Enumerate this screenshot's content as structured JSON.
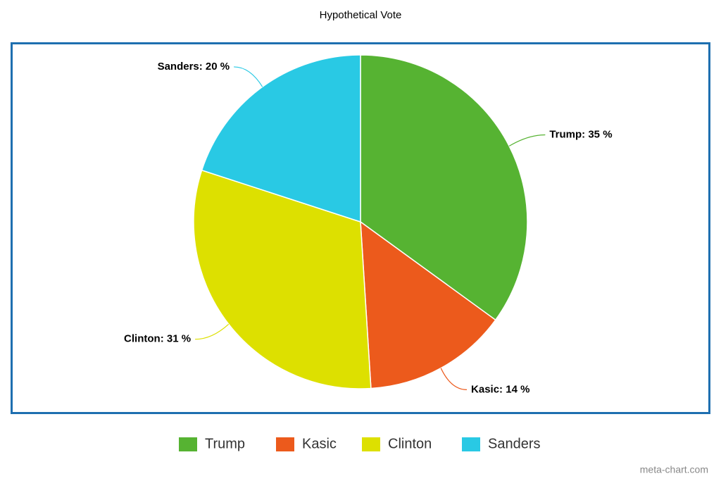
{
  "chart_data": {
    "type": "pie",
    "title": "Hypothetical Vote",
    "categories": [
      "Trump",
      "Kasic",
      "Clinton",
      "Sanders"
    ],
    "values": [
      35,
      14,
      31,
      20
    ],
    "value_labels": [
      "Trump: 35 %",
      "Kasic: 14 %",
      "Clinton: 31 %",
      "Sanders: 20 %"
    ],
    "colors": [
      "#56b332",
      "#ec5a1c",
      "#dde000",
      "#29c9e4"
    ],
    "legend": "bottom",
    "credit": "meta-chart.com"
  }
}
